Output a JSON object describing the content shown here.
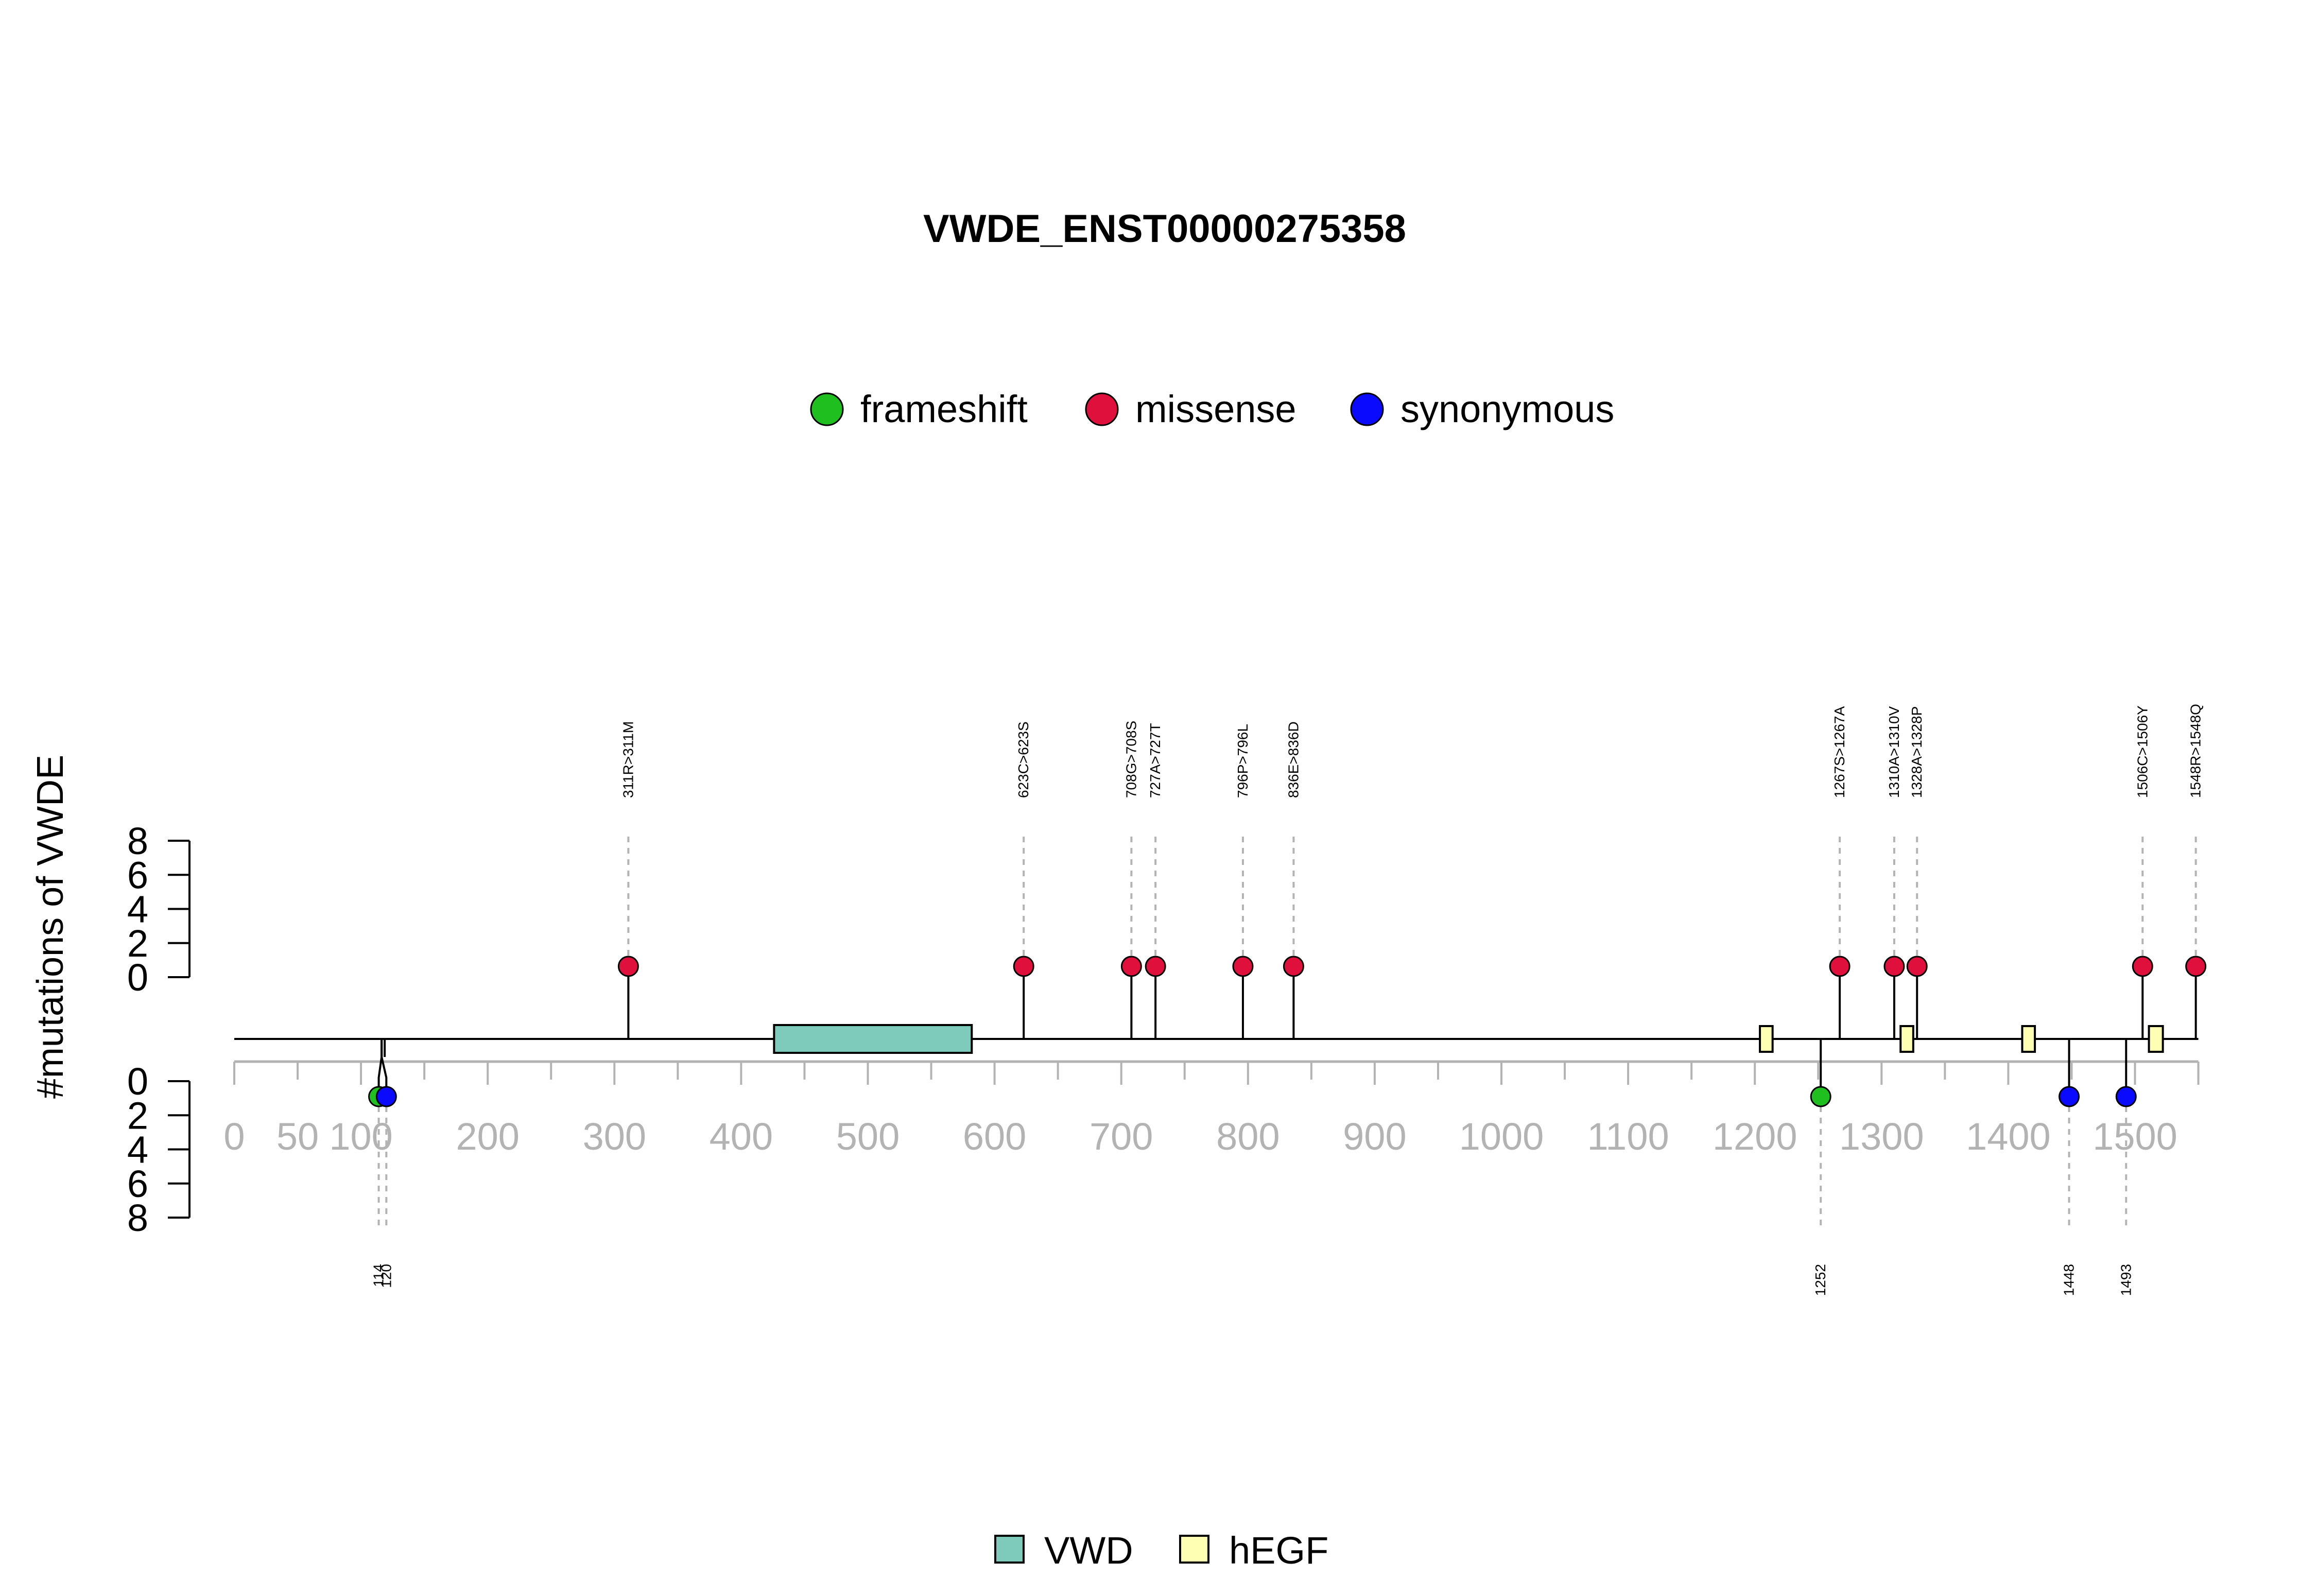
{
  "chart_data": {
    "type": "lollipop",
    "title": "VWDE_ENST00000275358",
    "ylabel": "#mutations of VWDE",
    "protein_length": 1550,
    "x_ticks": [
      0,
      50,
      100,
      200,
      300,
      400,
      500,
      600,
      700,
      800,
      900,
      1000,
      1100,
      1200,
      1300,
      1400,
      1500
    ],
    "y_ticks": [
      0,
      2,
      4,
      6,
      8
    ],
    "mutation_types": [
      {
        "name": "frameshift",
        "color": "#1fbf1f"
      },
      {
        "name": "missense",
        "color": "#e0103c"
      },
      {
        "name": "synonymous",
        "color": "#0a0aff"
      }
    ],
    "domain_types": [
      {
        "name": "VWD",
        "color": "#7fcbbb"
      },
      {
        "name": "hEGF",
        "color": "#ffffb3"
      }
    ],
    "domains": [
      {
        "name": "VWD",
        "start": 426,
        "end": 582
      },
      {
        "name": "hEGF",
        "start": 1204,
        "end": 1214
      },
      {
        "name": "hEGF",
        "start": 1315,
        "end": 1325
      },
      {
        "name": "hEGF",
        "start": 1411,
        "end": 1421
      },
      {
        "name": "hEGF",
        "start": 1511,
        "end": 1522
      }
    ],
    "mutations_above": [
      {
        "pos": 311,
        "label": "311R>311M",
        "type": "missense",
        "count": 1
      },
      {
        "pos": 623,
        "label": "623C>623S",
        "type": "missense",
        "count": 1
      },
      {
        "pos": 708,
        "label": "708G>708S",
        "type": "missense",
        "count": 1
      },
      {
        "pos": 727,
        "label": "727A>727T",
        "type": "missense",
        "count": 1
      },
      {
        "pos": 796,
        "label": "796P>796L",
        "type": "missense",
        "count": 1
      },
      {
        "pos": 836,
        "label": "836E>836D",
        "type": "missense",
        "count": 1
      },
      {
        "pos": 1267,
        "label": "1267S>1267A",
        "type": "missense",
        "count": 1
      },
      {
        "pos": 1310,
        "label": "1310A>1310V",
        "type": "missense",
        "count": 1
      },
      {
        "pos": 1328,
        "label": "1328A>1328P",
        "type": "missense",
        "count": 1
      },
      {
        "pos": 1506,
        "label": "1506C>1506Y",
        "type": "missense",
        "count": 1
      },
      {
        "pos": 1548,
        "label": "1548R>1548Q",
        "type": "missense",
        "count": 1
      }
    ],
    "mutations_below": [
      {
        "pos": 114,
        "label": "114",
        "type": "frameshift",
        "count": 1
      },
      {
        "pos": 120,
        "label": "120",
        "type": "synonymous",
        "count": 1
      },
      {
        "pos": 1252,
        "label": "1252",
        "type": "frameshift",
        "count": 1
      },
      {
        "pos": 1448,
        "label": "1448",
        "type": "synonymous",
        "count": 1
      },
      {
        "pos": 1493,
        "label": "1493",
        "type": "synonymous",
        "count": 1
      }
    ]
  }
}
